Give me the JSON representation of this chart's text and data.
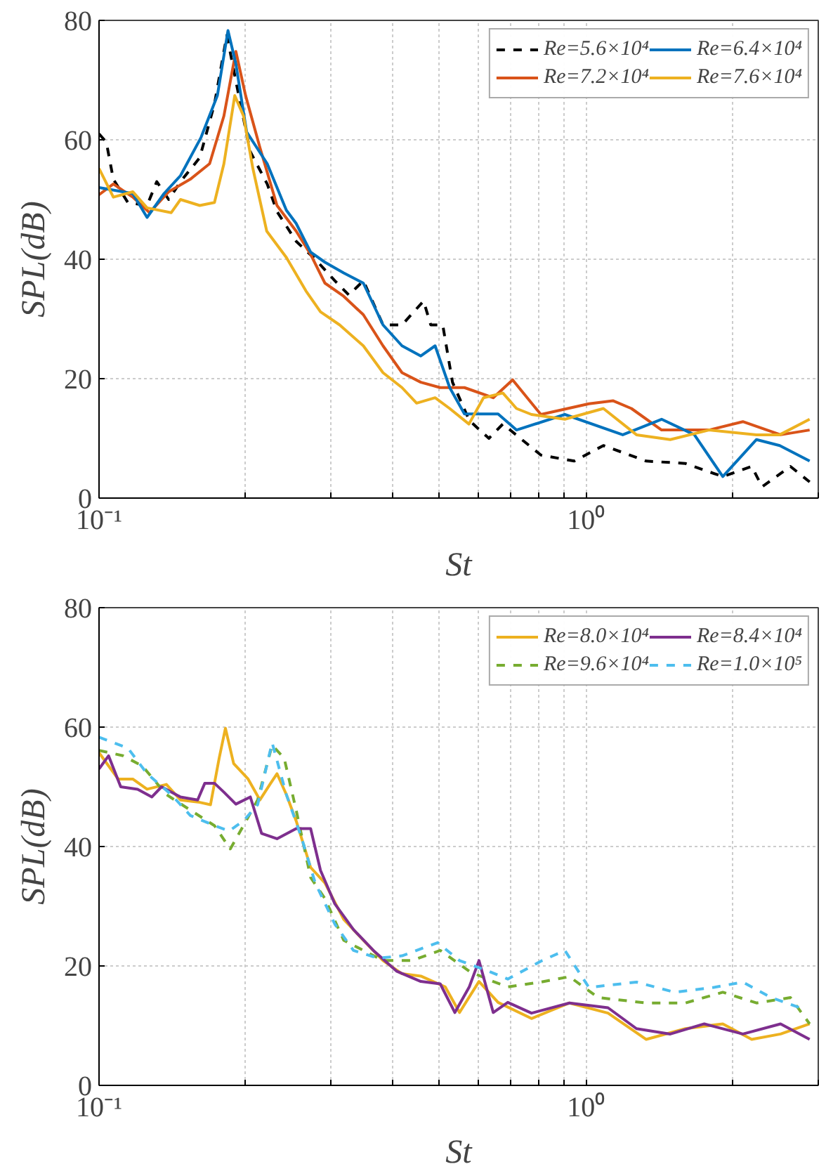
{
  "chart_data": [
    {
      "type": "line",
      "xlabel": "St",
      "ylabel": "SPL(dB)",
      "log": "x",
      "grid": true,
      "legend": "top right",
      "xlim": [
        0.1,
        3
      ],
      "ylim": [
        0,
        80
      ],
      "xticks": [
        {
          "value": 0.1,
          "label": "10⁻¹"
        },
        {
          "value": 0.2,
          "label": null
        },
        {
          "value": 0.3,
          "label": null
        },
        {
          "value": 0.4,
          "label": null
        },
        {
          "value": 0.5,
          "label": null
        },
        {
          "value": 0.6,
          "label": null
        },
        {
          "value": 0.7,
          "label": null
        },
        {
          "value": 0.8,
          "label": null
        },
        {
          "value": 0.9,
          "label": null
        },
        {
          "value": 1,
          "label": "10⁰"
        },
        {
          "value": 2,
          "label": null
        },
        {
          "value": 3,
          "label": null
        }
      ],
      "yticks": [
        0,
        20,
        40,
        60,
        80
      ],
      "series": [
        {
          "name": "Re=5.6×10⁴",
          "color": "#000000",
          "line_style": "dashed",
          "x": [
            0.1,
            0.1035,
            0.107,
            0.1146,
            0.1255,
            0.1314,
            0.139,
            0.147,
            0.161,
            0.1726,
            0.183,
            0.193,
            0.2045,
            0.2215,
            0.232,
            0.254,
            0.278,
            0.305,
            0.326,
            0.349,
            0.383,
            0.419,
            0.464,
            0.48,
            0.508,
            0.532,
            0.576,
            0.632,
            0.675,
            0.808,
            0.946,
            1.086,
            1.33,
            1.6,
            1.91,
            2.19,
            2.3,
            2.63,
            2.88
          ],
          "values": [
            61,
            59.6,
            53.4,
            49.5,
            49,
            53,
            50,
            53,
            57,
            66,
            77.5,
            68,
            58,
            52.6,
            48,
            43,
            40,
            36.4,
            34,
            36.4,
            29,
            29,
            33,
            29,
            29,
            19.4,
            13,
            10,
            12.4,
            7.2,
            6.2,
            8.8,
            6.2,
            5.8,
            3.6,
            5.3,
            1.9,
            5.3,
            2.7
          ]
        },
        {
          "name": "Re=7.2×10⁴",
          "color": "#d95319",
          "x": [
            0.1,
            0.107,
            0.1173,
            0.127,
            0.139,
            0.154,
            0.1687,
            0.1805,
            0.191,
            0.2,
            0.214,
            0.232,
            0.254,
            0.272,
            0.291,
            0.318,
            0.349,
            0.383,
            0.419,
            0.458,
            0.502,
            0.563,
            0.645,
            0.707,
            0.808,
            1.014,
            1.136,
            1.24,
            1.43,
            1.79,
            2.1,
            2.51,
            2.88
          ],
          "values": [
            50.8,
            52.6,
            50.4,
            47.8,
            51.3,
            53.4,
            56,
            64,
            74.8,
            67.4,
            58.7,
            49,
            44.7,
            40.8,
            36,
            33.8,
            30.7,
            25.5,
            21,
            19.4,
            18.5,
            18.5,
            16.8,
            19.8,
            14,
            15.8,
            16.3,
            15,
            11.4,
            11.4,
            12.8,
            10.6,
            11.4
          ]
        },
        {
          "name": "Re=6.4×10⁴",
          "color": "#0072bd",
          "x": [
            0.1,
            0.1173,
            0.1255,
            0.136,
            0.147,
            0.162,
            0.175,
            0.184,
            0.191,
            0.201,
            0.2215,
            0.2425,
            0.254,
            0.272,
            0.291,
            0.318,
            0.349,
            0.383,
            0.419,
            0.458,
            0.49,
            0.525,
            0.563,
            0.66,
            0.72,
            0.905,
            1.19,
            1.43,
            1.67,
            1.91,
            2.24,
            2.5,
            2.88
          ],
          "values": [
            52,
            51,
            47,
            51,
            54,
            60.4,
            67.4,
            78.3,
            72.7,
            61.3,
            56,
            48.2,
            46,
            41.2,
            39.5,
            37.7,
            36,
            29,
            25.5,
            23.8,
            25.5,
            18.5,
            14.1,
            14.1,
            11.4,
            14,
            10.6,
            13.2,
            10.6,
            3.6,
            9.8,
            8.8,
            6.2
          ]
        },
        {
          "name": "Re=7.6×10⁴",
          "color": "#edb120",
          "x": [
            0.1,
            0.107,
            0.1173,
            0.1255,
            0.1407,
            0.147,
            0.161,
            0.1726,
            0.1805,
            0.19,
            0.198,
            0.207,
            0.221,
            0.2425,
            0.266,
            0.285,
            0.312,
            0.349,
            0.383,
            0.419,
            0.449,
            0.49,
            0.525,
            0.575,
            0.616,
            0.675,
            0.72,
            0.773,
            0.905,
            1.086,
            1.27,
            1.49,
            1.79,
            2.24,
            2.5,
            2.88
          ],
          "values": [
            55.2,
            50.4,
            51.3,
            48.6,
            47.8,
            50,
            49,
            49.5,
            56,
            67.4,
            64,
            55.2,
            44.7,
            40.3,
            34.7,
            31.2,
            29,
            25.5,
            21,
            18.5,
            15.9,
            16.8,
            15,
            12.4,
            16.8,
            17.6,
            15,
            14,
            13.2,
            15,
            10.6,
            9.8,
            11.4,
            10.6,
            10.6,
            13.2
          ]
        }
      ]
    },
    {
      "type": "line",
      "xlabel": "St",
      "ylabel": "SPL(dB)",
      "log": "x",
      "grid": true,
      "legend": "top right",
      "xlim": [
        0.1,
        3
      ],
      "ylim": [
        0,
        80
      ],
      "xticks": [
        {
          "value": 0.1,
          "label": "10⁻¹"
        },
        {
          "value": 0.2,
          "label": null
        },
        {
          "value": 0.3,
          "label": null
        },
        {
          "value": 0.4,
          "label": null
        },
        {
          "value": 0.5,
          "label": null
        },
        {
          "value": 0.6,
          "label": null
        },
        {
          "value": 0.7,
          "label": null
        },
        {
          "value": 0.8,
          "label": null
        },
        {
          "value": 0.9,
          "label": null
        },
        {
          "value": 1,
          "label": "10⁰"
        },
        {
          "value": 2,
          "label": null
        },
        {
          "value": 3,
          "label": null
        }
      ],
      "yticks": [
        0,
        20,
        40,
        60,
        80
      ],
      "series": [
        {
          "name": "Re=8.0×10⁴",
          "color": "#edb120",
          "x": [
            0.1,
            0.1095,
            0.1173,
            0.1255,
            0.1375,
            0.147,
            0.161,
            0.1694,
            0.1765,
            0.1818,
            0.189,
            0.2024,
            0.214,
            0.2243,
            0.232,
            0.2425,
            0.254,
            0.272,
            0.291,
            0.318,
            0.349,
            0.383,
            0.419,
            0.458,
            0.514,
            0.55,
            0.603,
            0.66,
            0.773,
            0.925,
            1.11,
            1.33,
            1.6,
            1.91,
            2.19,
            2.51,
            2.88
          ],
          "values": [
            55.7,
            51.3,
            51.3,
            49.6,
            50.4,
            47.8,
            47.4,
            47,
            54.8,
            59.8,
            53.9,
            51.3,
            47.8,
            50.4,
            52.2,
            48.7,
            44.3,
            36.5,
            33.9,
            27.8,
            24.3,
            20.9,
            18.7,
            18.3,
            16.5,
            12.2,
            17.4,
            13.9,
            11.2,
            13.8,
            12.1,
            7.7,
            9.5,
            10.3,
            7.7,
            8.6,
            10.3
          ]
        },
        {
          "name": "Re=9.6×10⁴",
          "color": "#77ac30",
          "line_style": "dashed",
          "x": [
            0.1,
            0.112,
            0.1227,
            0.1375,
            0.154,
            0.1726,
            0.186,
            0.198,
            0.2117,
            0.2267,
            0.24,
            0.254,
            0.272,
            0.291,
            0.318,
            0.349,
            0.383,
            0.439,
            0.502,
            0.576,
            0.645,
            0.691,
            0.808,
            0.925,
            1.06,
            1.33,
            1.6,
            1.91,
            2.24,
            2.63,
            2.88
          ],
          "values": [
            56.1,
            55.2,
            53.5,
            48.7,
            46.1,
            43.5,
            39.6,
            43.5,
            47.8,
            57,
            54.8,
            46.1,
            34.8,
            31.3,
            24.3,
            22.6,
            20.9,
            20.9,
            22.6,
            19.1,
            17.4,
            16.5,
            17.3,
            18.2,
            14.7,
            13.8,
            13.8,
            15.6,
            13.8,
            14.7,
            10.3
          ]
        },
        {
          "name": "Re=8.4×10⁴",
          "color": "#7e2f8e",
          "x": [
            0.1,
            0.1046,
            0.1108,
            0.12,
            0.1284,
            0.1344,
            0.147,
            0.1594,
            0.1649,
            0.1726,
            0.1805,
            0.191,
            0.2045,
            0.2157,
            0.232,
            0.254,
            0.272,
            0.285,
            0.305,
            0.333,
            0.366,
            0.409,
            0.458,
            0.502,
            0.538,
            0.576,
            0.603,
            0.645,
            0.691,
            0.773,
            0.925,
            1.11,
            1.27,
            1.49,
            1.75,
            2.1,
            2.51,
            2.88
          ],
          "values": [
            53,
            55.2,
            50,
            49.6,
            48.3,
            50,
            48.3,
            47.8,
            50.6,
            50.6,
            49.1,
            47.1,
            48.3,
            42.2,
            41.3,
            43,
            43,
            36,
            30.4,
            26.1,
            22.6,
            19.1,
            17.4,
            17,
            12.2,
            16.5,
            20.9,
            12.2,
            13.9,
            12.1,
            13.8,
            13,
            9.5,
            8.6,
            10.3,
            8.6,
            10.3,
            7.7
          ]
        },
        {
          "name": "Re=1.0×10⁵",
          "color": "#4dbeee",
          "line_style": "dashed",
          "x": [
            0.1,
            0.107,
            0.1146,
            0.1255,
            0.1407,
            0.154,
            0.1726,
            0.185,
            0.198,
            0.2117,
            0.2267,
            0.2425,
            0.26,
            0.278,
            0.305,
            0.333,
            0.374,
            0.419,
            0.496,
            0.55,
            0.632,
            0.691,
            0.808,
            0.905,
            1.014,
            1.27,
            1.52,
            1.83,
            2.1,
            2.4,
            2.75
          ],
          "values": [
            58.3,
            57.4,
            56.5,
            52.2,
            48.7,
            45.2,
            43.5,
            42.6,
            44.3,
            47,
            57.4,
            48.7,
            41.7,
            33.9,
            27,
            22.6,
            21.3,
            21.7,
            23.9,
            20.9,
            19.1,
            17.8,
            20.8,
            22.6,
            16.4,
            17.3,
            15.6,
            16.4,
            17.3,
            14.7,
            13
          ]
        }
      ]
    }
  ]
}
